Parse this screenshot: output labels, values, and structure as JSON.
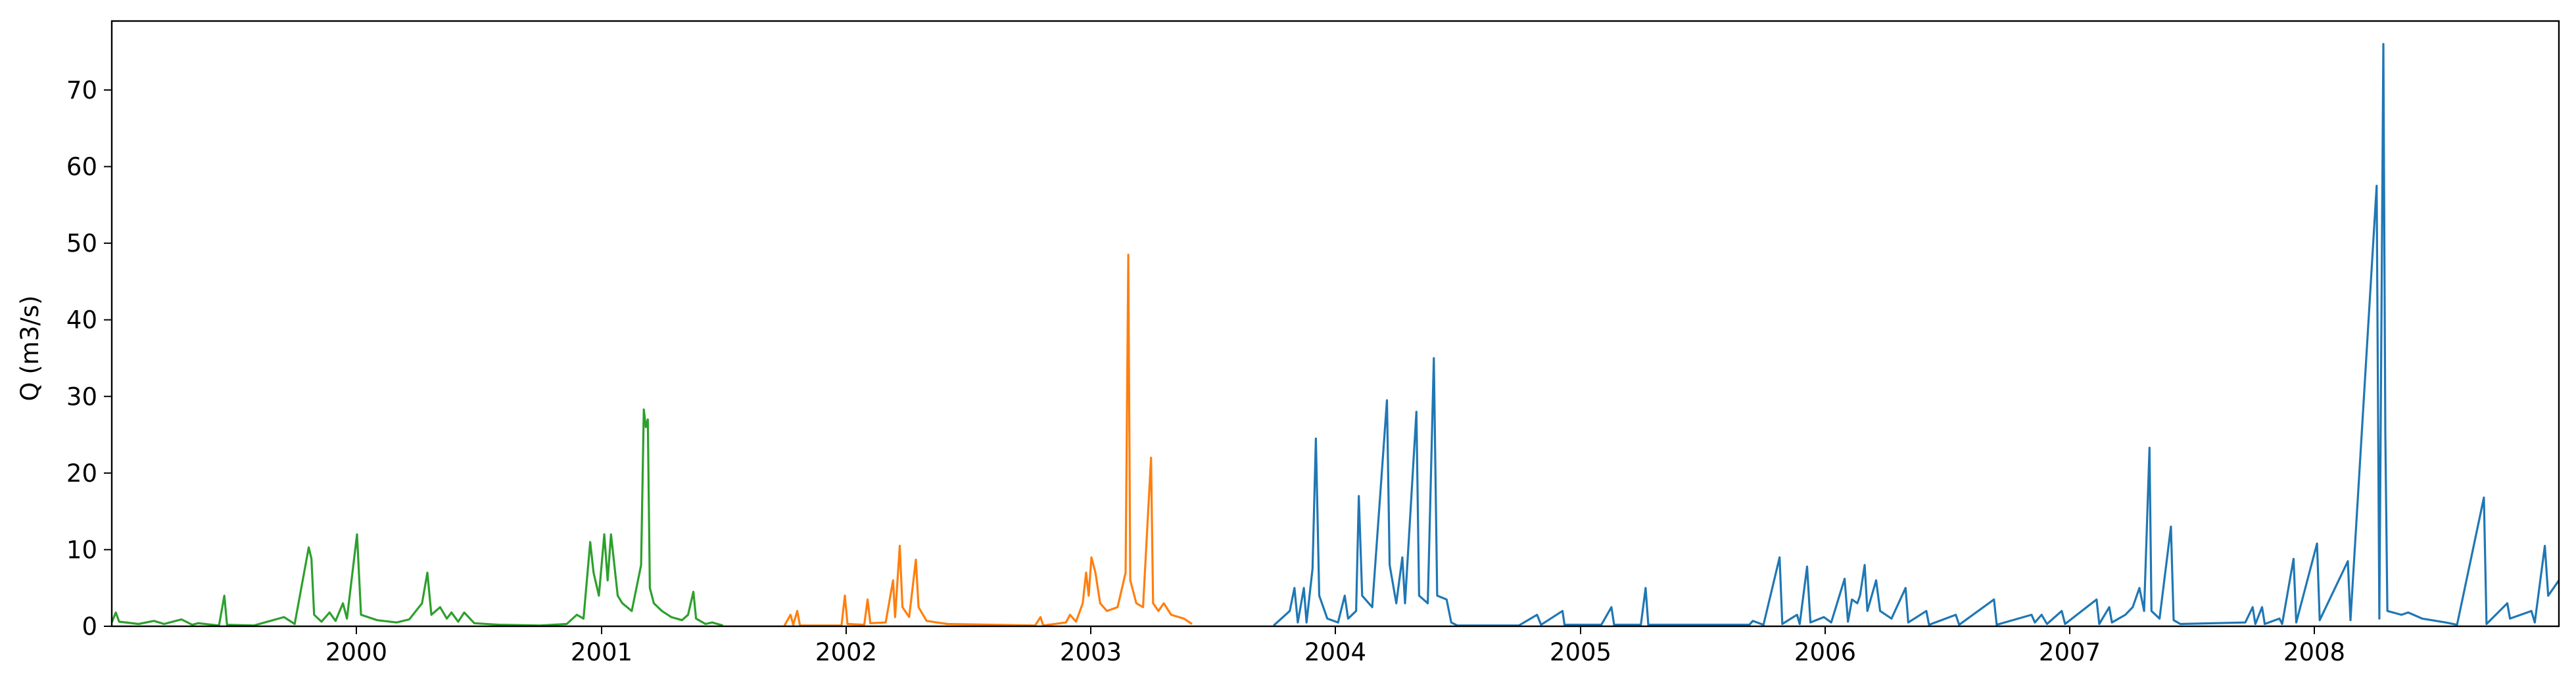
{
  "chart_data": {
    "type": "line",
    "title": "",
    "xlabel": "",
    "ylabel": "Q (m3/s)",
    "xlim": [
      "1999-01-01",
      "2008-12-31"
    ],
    "ylim": [
      0,
      79
    ],
    "x_ticks": [
      "2000",
      "2001",
      "2002",
      "2003",
      "2004",
      "2005",
      "2006",
      "2007",
      "2008"
    ],
    "y_ticks": [
      0,
      10,
      20,
      30,
      40,
      50,
      60,
      70
    ],
    "grid": false,
    "legend": "none",
    "series": [
      {
        "color": "#2ca02c",
        "points": [
          [
            "1999-01-01",
            0.5
          ],
          [
            "1999-01-07",
            1.8
          ],
          [
            "1999-01-12",
            0.6
          ],
          [
            "1999-02-10",
            0.3
          ],
          [
            "1999-03-05",
            0.7
          ],
          [
            "1999-03-20",
            0.3
          ],
          [
            "1999-04-15",
            0.9
          ],
          [
            "1999-05-01",
            0.2
          ],
          [
            "1999-05-10",
            0.4
          ],
          [
            "1999-06-10",
            0.1
          ],
          [
            "1999-06-18",
            4.0
          ],
          [
            "1999-06-22",
            0.2
          ],
          [
            "1999-08-01",
            0.1
          ],
          [
            "1999-09-15",
            1.2
          ],
          [
            "1999-10-01",
            0.3
          ],
          [
            "1999-10-22",
            10.3
          ],
          [
            "1999-10-26",
            8.8
          ],
          [
            "1999-10-30",
            1.5
          ],
          [
            "1999-11-10",
            0.6
          ],
          [
            "1999-11-22",
            1.8
          ],
          [
            "1999-12-01",
            0.7
          ],
          [
            "1999-12-12",
            3.0
          ],
          [
            "1999-12-18",
            1.0
          ],
          [
            "2000-01-02",
            12.0
          ],
          [
            "2000-01-08",
            1.5
          ],
          [
            "2000-02-01",
            0.8
          ],
          [
            "2000-03-01",
            0.5
          ],
          [
            "2000-03-20",
            0.9
          ],
          [
            "2000-04-08",
            3.0
          ],
          [
            "2000-04-16",
            7.0
          ],
          [
            "2000-04-22",
            1.5
          ],
          [
            "2000-05-05",
            2.5
          ],
          [
            "2000-05-15",
            1.0
          ],
          [
            "2000-05-22",
            1.8
          ],
          [
            "2000-06-01",
            0.6
          ],
          [
            "2000-06-10",
            1.8
          ],
          [
            "2000-06-25",
            0.4
          ],
          [
            "2000-08-01",
            0.2
          ],
          [
            "2000-10-01",
            0.1
          ],
          [
            "2000-11-10",
            0.3
          ],
          [
            "2000-11-25",
            1.5
          ],
          [
            "2000-12-05",
            1.0
          ],
          [
            "2000-12-15",
            11.0
          ],
          [
            "2000-12-20",
            7.0
          ],
          [
            "2000-12-28",
            4.0
          ],
          [
            "2001-01-05",
            12.0
          ],
          [
            "2001-01-10",
            6.0
          ],
          [
            "2001-01-15",
            12.0
          ],
          [
            "2001-01-20",
            8.0
          ],
          [
            "2001-01-25",
            4.0
          ],
          [
            "2001-02-01",
            3.0
          ],
          [
            "2001-02-15",
            2.0
          ],
          [
            "2001-03-01",
            8.0
          ],
          [
            "2001-03-05",
            28.3
          ],
          [
            "2001-03-08",
            26.0
          ],
          [
            "2001-03-11",
            27.0
          ],
          [
            "2001-03-14",
            5.0
          ],
          [
            "2001-03-20",
            3.0
          ],
          [
            "2001-04-01",
            2.0
          ],
          [
            "2001-04-15",
            1.2
          ],
          [
            "2001-05-01",
            0.8
          ],
          [
            "2001-05-10",
            1.5
          ],
          [
            "2001-05-18",
            4.5
          ],
          [
            "2001-05-22",
            1.0
          ],
          [
            "2001-06-05",
            0.3
          ],
          [
            "2001-06-15",
            0.5
          ],
          [
            "2001-07-01",
            0.1
          ]
        ]
      },
      {
        "color": "#ff7f0e",
        "points": [
          [
            "2001-10-01",
            0.1
          ],
          [
            "2001-10-10",
            1.5
          ],
          [
            "2001-10-14",
            0.2
          ],
          [
            "2001-10-20",
            2.0
          ],
          [
            "2001-10-24",
            0.1
          ],
          [
            "2001-12-25",
            0.1
          ],
          [
            "2001-12-30",
            4.0
          ],
          [
            "2002-01-03",
            0.3
          ],
          [
            "2002-01-28",
            0.2
          ],
          [
            "2002-02-02",
            3.5
          ],
          [
            "2002-02-06",
            0.4
          ],
          [
            "2002-03-01",
            0.5
          ],
          [
            "2002-03-12",
            6.0
          ],
          [
            "2002-03-15",
            1.2
          ],
          [
            "2002-03-22",
            10.5
          ],
          [
            "2002-03-26",
            2.5
          ],
          [
            "2002-04-05",
            1.2
          ],
          [
            "2002-04-15",
            8.7
          ],
          [
            "2002-04-19",
            2.5
          ],
          [
            "2002-05-01",
            0.7
          ],
          [
            "2002-06-01",
            0.3
          ],
          [
            "2002-10-10",
            0.1
          ],
          [
            "2002-10-18",
            1.2
          ],
          [
            "2002-10-22",
            0.1
          ],
          [
            "2002-11-25",
            0.5
          ],
          [
            "2002-12-01",
            1.5
          ],
          [
            "2002-12-10",
            0.6
          ],
          [
            "2002-12-20",
            3.0
          ],
          [
            "2002-12-25",
            7.0
          ],
          [
            "2002-12-29",
            4.0
          ],
          [
            "2003-01-02",
            9.0
          ],
          [
            "2003-01-08",
            7.0
          ],
          [
            "2003-01-15",
            3.0
          ],
          [
            "2003-01-25",
            2.0
          ],
          [
            "2003-02-10",
            2.5
          ],
          [
            "2003-02-22",
            7.0
          ],
          [
            "2003-02-26",
            48.5
          ],
          [
            "2003-03-01",
            6.0
          ],
          [
            "2003-03-10",
            3.0
          ],
          [
            "2003-03-20",
            2.5
          ],
          [
            "2003-04-01",
            22.0
          ],
          [
            "2003-04-04",
            3.0
          ],
          [
            "2003-04-12",
            2.0
          ],
          [
            "2003-04-20",
            3.0
          ],
          [
            "2003-05-01",
            1.5
          ],
          [
            "2003-05-20",
            1.0
          ],
          [
            "2003-06-01",
            0.3
          ]
        ]
      },
      {
        "color": "#1f77b4",
        "points": [
          [
            "2003-10-01",
            0.1
          ],
          [
            "2003-10-25",
            2.0
          ],
          [
            "2003-11-01",
            5.0
          ],
          [
            "2003-11-06",
            0.5
          ],
          [
            "2003-11-15",
            5.0
          ],
          [
            "2003-11-19",
            0.5
          ],
          [
            "2003-11-28",
            7.5
          ],
          [
            "2003-12-03",
            24.5
          ],
          [
            "2003-12-08",
            4.0
          ],
          [
            "2003-12-20",
            1.0
          ],
          [
            "2004-01-05",
            0.5
          ],
          [
            "2004-01-15",
            4.0
          ],
          [
            "2004-01-20",
            1.0
          ],
          [
            "2004-02-01",
            2.0
          ],
          [
            "2004-02-05",
            17.0
          ],
          [
            "2004-02-10",
            4.0
          ],
          [
            "2004-02-25",
            2.5
          ],
          [
            "2004-03-18",
            29.5
          ],
          [
            "2004-03-22",
            8.0
          ],
          [
            "2004-04-01",
            3.0
          ],
          [
            "2004-04-10",
            9.0
          ],
          [
            "2004-04-14",
            3.0
          ],
          [
            "2004-05-01",
            28.0
          ],
          [
            "2004-05-05",
            4.0
          ],
          [
            "2004-05-18",
            3.0
          ],
          [
            "2004-05-27",
            35.0
          ],
          [
            "2004-06-01",
            4.0
          ],
          [
            "2004-06-15",
            3.5
          ],
          [
            "2004-06-22",
            0.5
          ],
          [
            "2004-07-01",
            0.1
          ],
          [
            "2004-10-01",
            0.1
          ],
          [
            "2004-10-28",
            1.5
          ],
          [
            "2004-11-03",
            0.2
          ],
          [
            "2004-12-05",
            2.0
          ],
          [
            "2004-12-08",
            0.2
          ],
          [
            "2005-02-01",
            0.2
          ],
          [
            "2005-02-16",
            2.5
          ],
          [
            "2005-02-20",
            0.2
          ],
          [
            "2005-04-01",
            0.2
          ],
          [
            "2005-04-08",
            5.0
          ],
          [
            "2005-04-12",
            0.2
          ],
          [
            "2005-09-10",
            0.2
          ],
          [
            "2005-09-15",
            0.7
          ],
          [
            "2005-10-01",
            0.2
          ],
          [
            "2005-10-25",
            9.0
          ],
          [
            "2005-10-29",
            0.3
          ],
          [
            "2005-11-20",
            1.5
          ],
          [
            "2005-11-24",
            0.3
          ],
          [
            "2005-12-05",
            7.8
          ],
          [
            "2005-12-10",
            0.5
          ],
          [
            "2005-12-30",
            1.2
          ],
          [
            "2006-01-10",
            0.5
          ],
          [
            "2006-01-30",
            6.2
          ],
          [
            "2006-02-04",
            0.6
          ],
          [
            "2006-02-10",
            3.5
          ],
          [
            "2006-02-18",
            3.0
          ],
          [
            "2006-02-22",
            4.0
          ],
          [
            "2006-03-01",
            8.0
          ],
          [
            "2006-03-05",
            2.0
          ],
          [
            "2006-03-18",
            6.0
          ],
          [
            "2006-03-24",
            2.0
          ],
          [
            "2006-04-10",
            1.0
          ],
          [
            "2006-05-01",
            5.0
          ],
          [
            "2006-05-05",
            0.5
          ],
          [
            "2006-06-01",
            2.0
          ],
          [
            "2006-06-05",
            0.2
          ],
          [
            "2006-07-15",
            1.5
          ],
          [
            "2006-07-20",
            0.2
          ],
          [
            "2006-09-10",
            3.5
          ],
          [
            "2006-09-14",
            0.2
          ],
          [
            "2006-11-05",
            1.5
          ],
          [
            "2006-11-10",
            0.5
          ],
          [
            "2006-11-20",
            1.5
          ],
          [
            "2006-11-28",
            0.3
          ],
          [
            "2006-12-20",
            2.0
          ],
          [
            "2006-12-25",
            0.3
          ],
          [
            "2007-02-10",
            3.5
          ],
          [
            "2007-02-14",
            0.3
          ],
          [
            "2007-03-01",
            2.5
          ],
          [
            "2007-03-05",
            0.5
          ],
          [
            "2007-03-25",
            1.5
          ],
          [
            "2007-04-05",
            2.5
          ],
          [
            "2007-04-15",
            5.0
          ],
          [
            "2007-04-22",
            2.0
          ],
          [
            "2007-04-30",
            23.3
          ],
          [
            "2007-05-03",
            2.0
          ],
          [
            "2007-05-15",
            1.0
          ],
          [
            "2007-06-01",
            13.0
          ],
          [
            "2007-06-05",
            0.8
          ],
          [
            "2007-06-15",
            0.3
          ],
          [
            "2007-09-20",
            0.5
          ],
          [
            "2007-10-01",
            2.5
          ],
          [
            "2007-10-05",
            0.3
          ],
          [
            "2007-10-15",
            2.5
          ],
          [
            "2007-10-19",
            0.3
          ],
          [
            "2007-11-10",
            1.0
          ],
          [
            "2007-11-14",
            0.3
          ],
          [
            "2007-12-01",
            8.8
          ],
          [
            "2007-12-05",
            0.5
          ],
          [
            "2008-01-05",
            10.8
          ],
          [
            "2008-01-09",
            0.8
          ],
          [
            "2008-02-20",
            8.5
          ],
          [
            "2008-02-24",
            0.8
          ],
          [
            "2008-04-03",
            57.5
          ],
          [
            "2008-04-07",
            1.0
          ],
          [
            "2008-04-13",
            76.0
          ],
          [
            "2008-04-16",
            25.0
          ],
          [
            "2008-04-19",
            2.0
          ],
          [
            "2008-05-10",
            1.5
          ],
          [
            "2008-05-20",
            1.8
          ],
          [
            "2008-06-10",
            1.0
          ],
          [
            "2008-07-15",
            0.5
          ],
          [
            "2008-08-01",
            0.2
          ],
          [
            "2008-09-10",
            16.8
          ],
          [
            "2008-09-14",
            0.3
          ],
          [
            "2008-10-15",
            3.0
          ],
          [
            "2008-10-19",
            1.0
          ],
          [
            "2008-11-20",
            2.0
          ],
          [
            "2008-11-25",
            0.5
          ],
          [
            "2008-12-10",
            10.5
          ],
          [
            "2008-12-15",
            4.0
          ],
          [
            "2008-12-31",
            6.0
          ]
        ]
      }
    ]
  }
}
